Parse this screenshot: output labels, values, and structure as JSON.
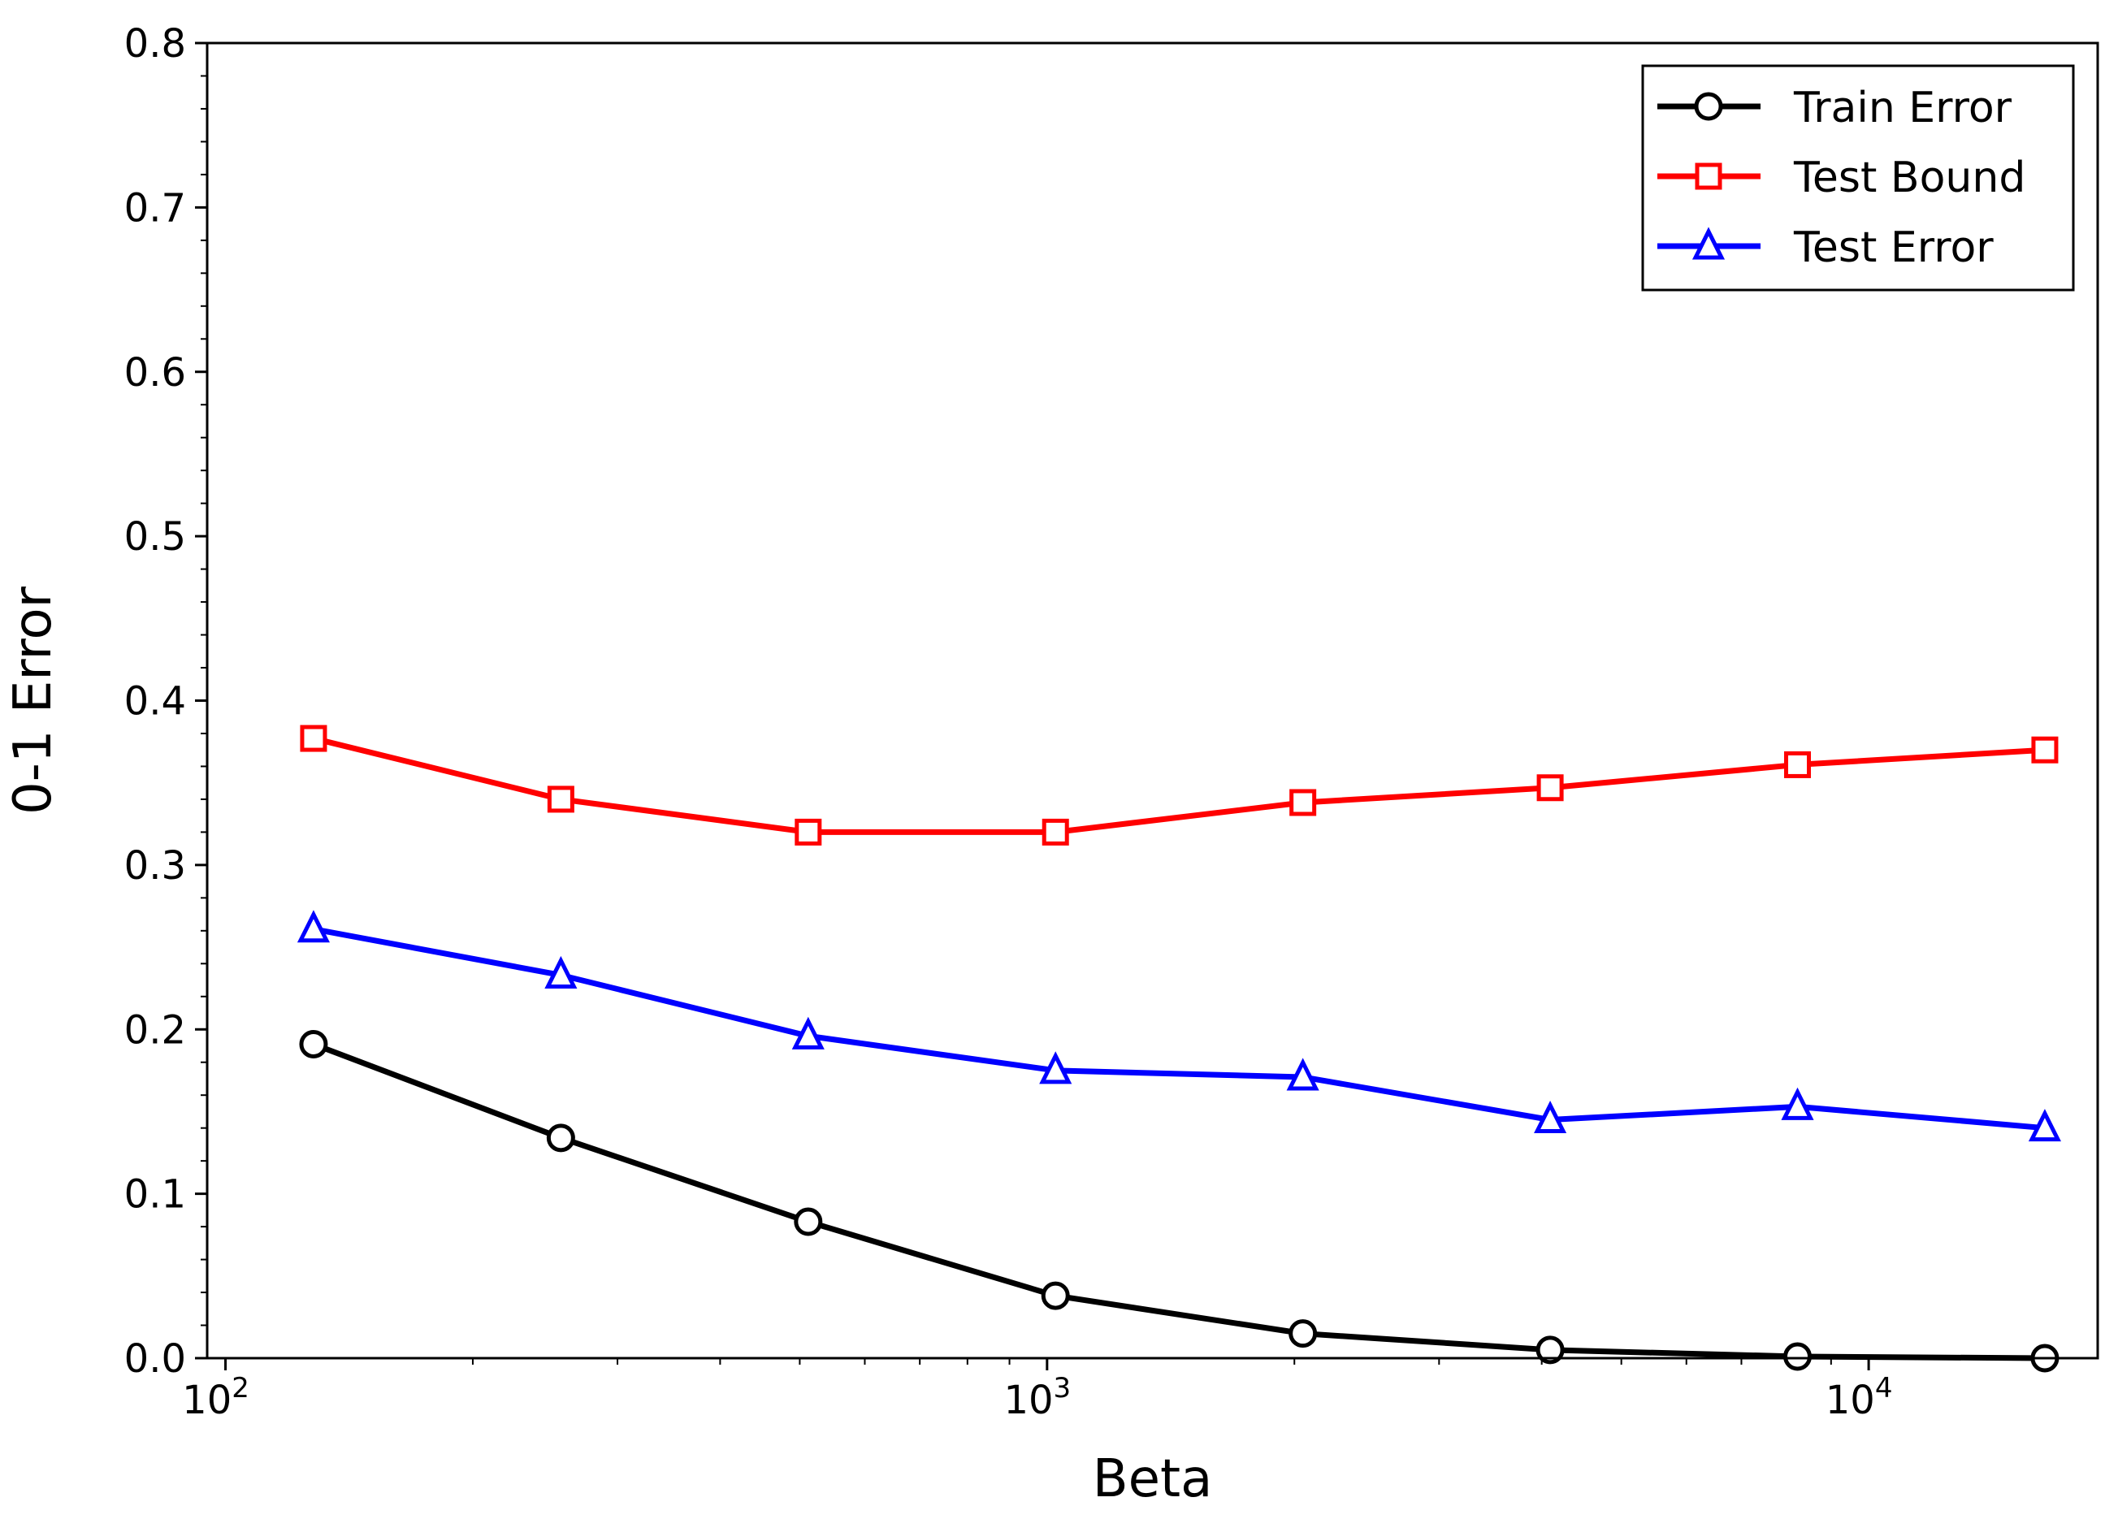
{
  "chart_data": {
    "type": "line",
    "xlabel": "Beta",
    "ylabel": "0-1 Error",
    "xscale": "log",
    "xlim": [
      95,
      19000
    ],
    "ylim": [
      0,
      0.8
    ],
    "grid": false,
    "legend_position": "top-right",
    "x": [
      128,
      256,
      512,
      1024,
      2048,
      4096,
      8192,
      16384
    ],
    "xticks": [
      {
        "base": "10",
        "exp": "2",
        "value": 100
      },
      {
        "base": "10",
        "exp": "3",
        "value": 1000
      },
      {
        "base": "10",
        "exp": "4",
        "value": 10000
      }
    ],
    "yticks": [
      "0.0",
      "0.1",
      "0.2",
      "0.3",
      "0.4",
      "0.5",
      "0.6",
      "0.7",
      "0.8"
    ],
    "series": [
      {
        "name": "Train Error",
        "color": "#000000",
        "marker": "circle",
        "values": [
          0.191,
          0.134,
          0.083,
          0.038,
          0.015,
          0.005,
          0.001,
          0.0
        ]
      },
      {
        "name": "Test Bound",
        "color": "#ff0000",
        "marker": "square",
        "values": [
          0.377,
          0.34,
          0.32,
          0.32,
          0.338,
          0.347,
          0.361,
          0.37
        ]
      },
      {
        "name": "Test Error",
        "color": "#0000ff",
        "marker": "triangle",
        "values": [
          0.261,
          0.233,
          0.196,
          0.175,
          0.171,
          0.145,
          0.153,
          0.14
        ]
      }
    ]
  }
}
